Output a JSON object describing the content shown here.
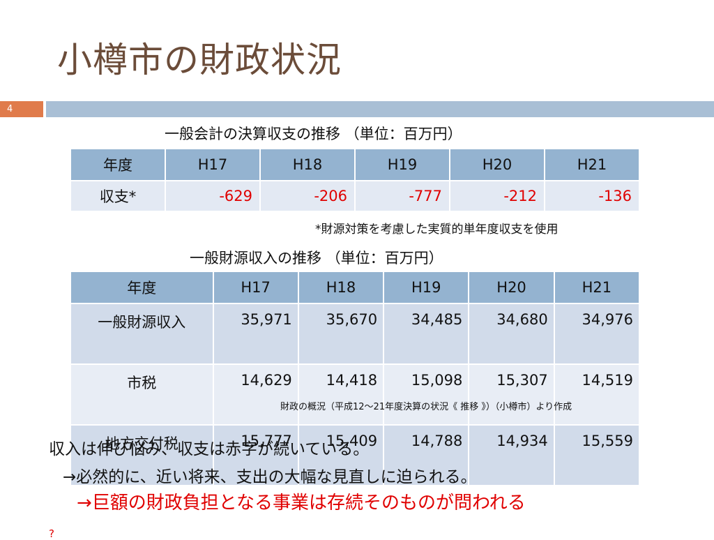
{
  "title": "小樽市の財政状況",
  "page_number": "4",
  "table1": {
    "caption": "一般会計の決算収支の推移 （単位：百万円）",
    "headers": [
      "年度",
      "H17",
      "H18",
      "H19",
      "H20",
      "H21"
    ],
    "row": {
      "label": "収支*",
      "values": [
        "-629",
        "-206",
        "-777",
        "-212",
        "-136"
      ]
    },
    "footnote": "*財源対策を考慮した実質的単年度収支を使用"
  },
  "table2": {
    "caption": "一般財源収入の推移 （単位：百万円）",
    "headers": [
      "年度",
      "H17",
      "H18",
      "H19",
      "H20",
      "H21"
    ],
    "rows": [
      {
        "label": "一般財源収入",
        "values": [
          "35,971",
          "35,670",
          "34,485",
          "34,680",
          "34,976"
        ]
      },
      {
        "label": "市税",
        "values": [
          "14,629",
          "14,418",
          "15,098",
          "15,307",
          "14,519"
        ]
      },
      {
        "label": "地方交付税",
        "values": [
          "15,777",
          "15,409",
          "14,788",
          "14,934",
          "15,559"
        ]
      }
    ],
    "source": "財政の概況（平成12～21年度決算の状況《 推移 》）（小樽市）より作成"
  },
  "conclusion": {
    "line1": "収入は伸び悩み、収支は赤字が続いている。",
    "line2": "→必然的に、近い将来、支出の大幅な見直しに迫られる。",
    "line3": "→巨額の財政負担となる事業は存続そのものが問われる",
    "line4": "?"
  }
}
